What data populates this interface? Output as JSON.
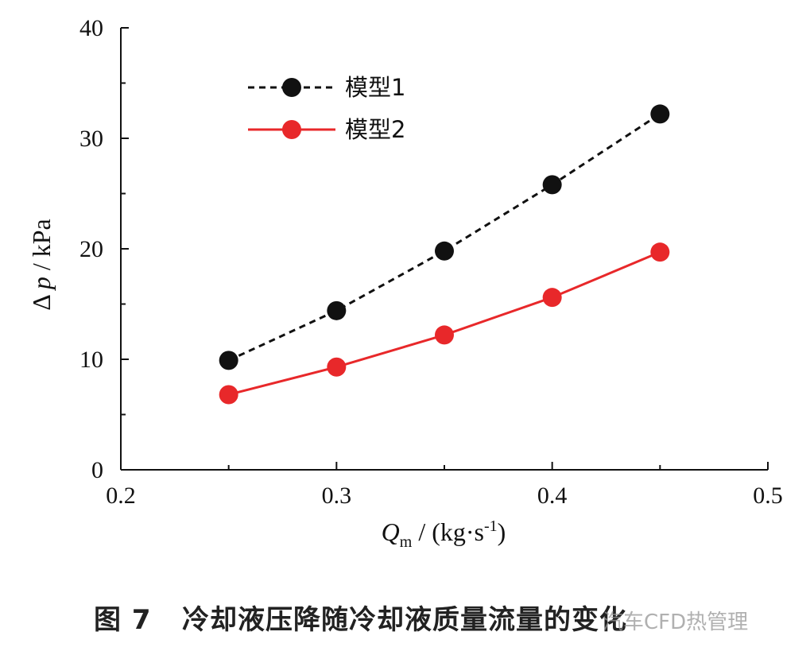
{
  "chart_data": {
    "type": "line",
    "x": [
      0.25,
      0.3,
      0.35,
      0.4,
      0.45
    ],
    "series": [
      {
        "name": "模型1",
        "values": [
          9.9,
          14.4,
          19.8,
          25.8,
          32.2
        ],
        "color": "#111111",
        "line": "dashed"
      },
      {
        "name": "模型2",
        "values": [
          6.8,
          9.3,
          12.2,
          15.6,
          19.7
        ],
        "color": "#e8282a",
        "line": "solid"
      }
    ],
    "xlim": [
      0.2,
      0.5
    ],
    "ylim": [
      0,
      40
    ],
    "xticks": [
      "0.2",
      "0.3",
      "0.4",
      "0.5"
    ],
    "yticks": [
      "0",
      "10",
      "20",
      "30",
      "40"
    ],
    "xlabel": {
      "symbol": "Q",
      "sub": "m",
      "unit": " / (kg·s",
      "exp": "-1",
      "close": ")"
    },
    "ylabel": {
      "delta": "Δ",
      "symbol": "p",
      "unit": " / kPa"
    },
    "legend_position": "top-left",
    "grid": false
  },
  "caption": "图 7   冷却液压降随冷却液质量流量的变化",
  "watermark": "汽车CFD热管理"
}
